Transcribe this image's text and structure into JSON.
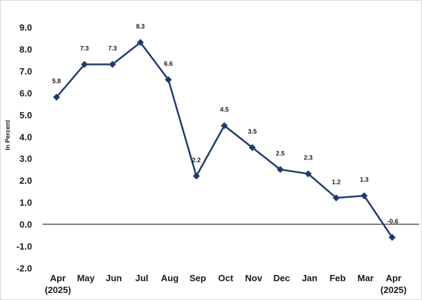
{
  "chart_data": {
    "type": "line",
    "title": "",
    "xlabel": "",
    "ylabel": "In Percent",
    "categories": [
      [
        "Apr",
        "(2025)"
      ],
      [
        "May"
      ],
      [
        "Jun"
      ],
      [
        "Jul"
      ],
      [
        "Aug"
      ],
      [
        "Sep"
      ],
      [
        "Oct"
      ],
      [
        "Nov"
      ],
      [
        "Dec"
      ],
      [
        "Jan"
      ],
      [
        "Feb"
      ],
      [
        "Mar"
      ],
      [
        "Apr",
        "(2025)"
      ]
    ],
    "series": [
      {
        "values": [
          5.8,
          7.3,
          7.3,
          8.3,
          6.6,
          2.2,
          4.5,
          3.5,
          2.5,
          2.3,
          1.2,
          1.3,
          -0.6
        ],
        "labels": [
          "5.8",
          "7.3",
          "7.3",
          "8.3",
          "6.6",
          "2.2",
          "4.5",
          "3.5",
          "2.5",
          "2.3",
          "1.2",
          "1.3",
          "-0.6"
        ],
        "color": "#1f3a6e"
      }
    ],
    "ylim": [
      -2.0,
      9.0
    ],
    "yticks": [
      "9.0",
      "8.0",
      "7.0",
      "6.0",
      "5.0",
      "4.0",
      "3.0",
      "2.0",
      "1.0",
      "0.0",
      "-1.0",
      "-2.0"
    ],
    "ytick_values": [
      9,
      8,
      7,
      6,
      5,
      4,
      3,
      2,
      1,
      0,
      -1,
      -2
    ],
    "zero_line": true,
    "grid": false,
    "legend": "none",
    "marker": "diamond"
  }
}
